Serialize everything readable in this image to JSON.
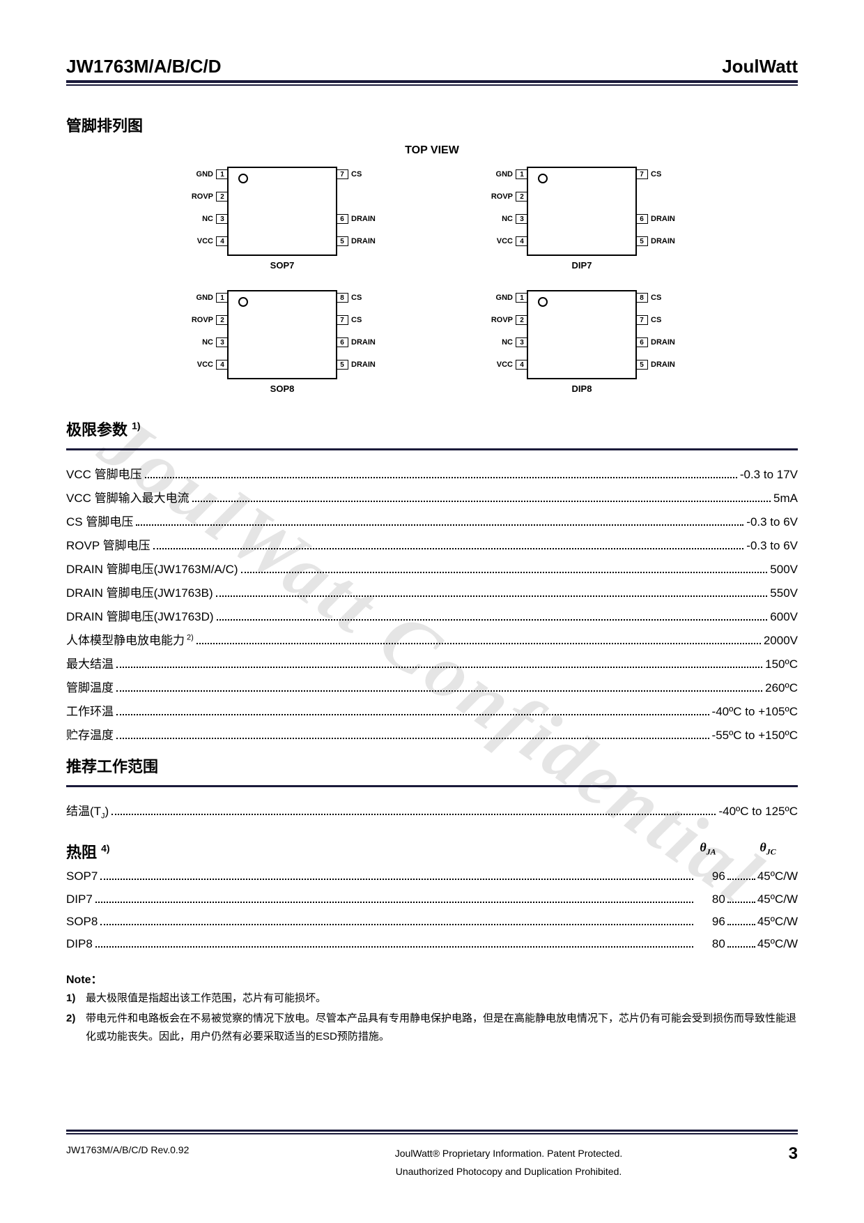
{
  "header": {
    "part": "JW1763M/A/B/C/D",
    "brand": "JoulWatt"
  },
  "sections": {
    "pinout": "管脚排列图",
    "topview": "TOP VIEW",
    "absmax": "极限参数",
    "recop": "推荐工作范围",
    "thermal": "热阻",
    "note": "Note："
  },
  "packages": [
    {
      "name": "SOP7",
      "left": [
        [
          "GND",
          "1"
        ],
        [
          "ROVP",
          "2"
        ],
        [
          "NC",
          "3"
        ],
        [
          "VCC",
          "4"
        ]
      ],
      "right": [
        [
          "7",
          "CS"
        ],
        [
          "",
          ""
        ],
        [
          "6",
          "DRAIN"
        ],
        [
          "5",
          "DRAIN"
        ]
      ]
    },
    {
      "name": "DIP7",
      "left": [
        [
          "GND",
          "1"
        ],
        [
          "ROVP",
          "2"
        ],
        [
          "NC",
          "3"
        ],
        [
          "VCC",
          "4"
        ]
      ],
      "right": [
        [
          "7",
          "CS"
        ],
        [
          "",
          ""
        ],
        [
          "6",
          "DRAIN"
        ],
        [
          "5",
          "DRAIN"
        ]
      ]
    },
    {
      "name": "SOP8",
      "left": [
        [
          "GND",
          "1"
        ],
        [
          "ROVP",
          "2"
        ],
        [
          "NC",
          "3"
        ],
        [
          "VCC",
          "4"
        ]
      ],
      "right": [
        [
          "8",
          "CS"
        ],
        [
          "7",
          "CS"
        ],
        [
          "6",
          "DRAIN"
        ],
        [
          "5",
          "DRAIN"
        ]
      ]
    },
    {
      "name": "DIP8",
      "left": [
        [
          "GND",
          "1"
        ],
        [
          "ROVP",
          "2"
        ],
        [
          "NC",
          "3"
        ],
        [
          "VCC",
          "4"
        ]
      ],
      "right": [
        [
          "8",
          "CS"
        ],
        [
          "7",
          "CS"
        ],
        [
          "6",
          "DRAIN"
        ],
        [
          "5",
          "DRAIN"
        ]
      ]
    }
  ],
  "absmax": [
    {
      "lbl": "VCC 管脚电压",
      "val": "-0.3 to 17V"
    },
    {
      "lbl": "VCC 管脚输入最大电流",
      "val": "5mA"
    },
    {
      "lbl": "CS 管脚电压",
      "val": "-0.3 to 6V"
    },
    {
      "lbl": "ROVP 管脚电压",
      "val": "-0.3 to 6V"
    },
    {
      "lbl": "DRAIN 管脚电压(JW1763M/A/C)",
      "val": "500V"
    },
    {
      "lbl": "DRAIN 管脚电压(JW1763B)",
      "val": "550V"
    },
    {
      "lbl": "DRAIN 管脚电压(JW1763D)",
      "val": "600V"
    },
    {
      "lbl": "人体模型静电放电能力",
      "sup": "2)",
      "val": "2000V"
    },
    {
      "lbl": "最大结温",
      "val": "150ºC"
    },
    {
      "lbl": "管脚温度",
      "val": "260ºC"
    },
    {
      "lbl": "工作环温",
      "val": "-40ºC to +105ºC"
    },
    {
      "lbl": "贮存温度",
      "val": "-55ºC to +150ºC"
    }
  ],
  "recop": [
    {
      "lbl": "结温(T",
      "sub": "J",
      "lbl2": ")",
      "val": "-40ºC to 125ºC"
    }
  ],
  "thermal_cols": {
    "c1": "θ",
    "c1s": "JA",
    "c2": "θ",
    "c2s": "JC"
  },
  "thermal": [
    {
      "lbl": "SOP7",
      "v1": "96",
      "v2": "45ºC/W"
    },
    {
      "lbl": "DIP7",
      "v1": "80",
      "v2": "45ºC/W"
    },
    {
      "lbl": "SOP8",
      "v1": "96",
      "v2": "45ºC/W"
    },
    {
      "lbl": "DIP8",
      "v1": "80",
      "v2": "45ºC/W"
    }
  ],
  "notes": [
    {
      "n": "1)",
      "t": "最大极限值是指超出该工作范围，芯片有可能损坏。"
    },
    {
      "n": "2)",
      "t": "带电元件和电路板会在不易被觉察的情况下放电。尽管本产品具有专用静电保护电路，但是在高能静电放电情况下，芯片仍有可能会受到损伤而导致性能退化或功能丧失。因此，用户仍然有必要采取适当的ESD预防措施。"
    }
  ],
  "footer": {
    "rev": "JW1763M/A/B/C/D Rev.0.92",
    "l1": "JoulWatt® Proprietary Information. Patent Protected.",
    "l2": "Unauthorized Photocopy and Duplication Prohibited.",
    "page": "3"
  },
  "watermark": "JoulWatt Confidential"
}
